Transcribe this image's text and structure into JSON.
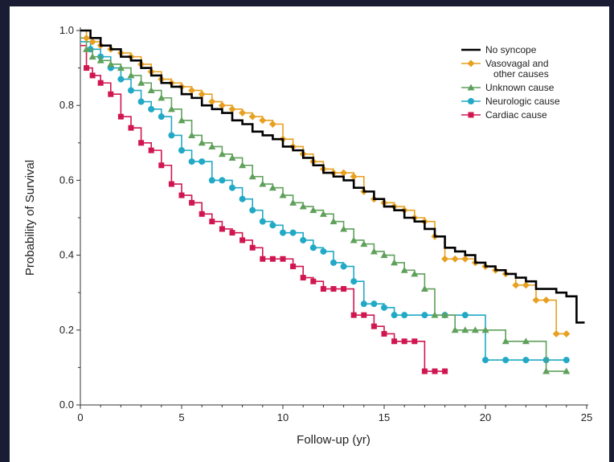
{
  "chart_data": {
    "type": "line",
    "step": true,
    "xlabel": "Follow-up (yr)",
    "ylabel": "Probability of Survival",
    "xlim": [
      0,
      25
    ],
    "ylim": [
      0,
      1.0
    ],
    "xticks": [
      0,
      5,
      10,
      15,
      20,
      25
    ],
    "yticks": [
      0.0,
      0.2,
      0.4,
      0.6,
      0.8,
      1.0
    ],
    "ytick_labels": [
      "0.0",
      "0.2",
      "0.4",
      "0.6",
      "0.8",
      "1.0"
    ],
    "legend_position": "top-right",
    "series": [
      {
        "name": "No syncope",
        "color": "#000000",
        "marker": "none",
        "x": [
          0,
          0.5,
          1,
          1.5,
          2,
          2.5,
          3,
          3.5,
          4,
          4.5,
          5,
          5.5,
          6,
          6.5,
          7,
          7.5,
          8,
          8.5,
          9,
          9.5,
          10,
          10.5,
          11,
          11.5,
          12,
          12.5,
          13,
          13.5,
          14,
          14.5,
          15,
          15.5,
          16,
          16.5,
          17,
          17.5,
          18,
          18.5,
          19,
          19.5,
          20,
          20.5,
          21,
          21.5,
          22,
          22.5,
          23,
          23.5,
          24,
          24.5,
          24.9
        ],
        "y": [
          1.0,
          0.98,
          0.96,
          0.95,
          0.93,
          0.92,
          0.9,
          0.88,
          0.86,
          0.85,
          0.83,
          0.82,
          0.8,
          0.79,
          0.78,
          0.76,
          0.75,
          0.73,
          0.72,
          0.71,
          0.69,
          0.68,
          0.66,
          0.64,
          0.62,
          0.61,
          0.6,
          0.58,
          0.57,
          0.55,
          0.53,
          0.52,
          0.5,
          0.49,
          0.47,
          0.45,
          0.42,
          0.41,
          0.4,
          0.38,
          0.37,
          0.36,
          0.35,
          0.34,
          0.33,
          0.31,
          0.31,
          0.3,
          0.29,
          0.22,
          0.22
        ]
      },
      {
        "name": "Vasovagal and other causes",
        "name_lines": [
          "Vasovagal and",
          "other causes"
        ],
        "color": "#e8a020",
        "marker": "diamond",
        "x": [
          0,
          0.3,
          0.6,
          1,
          1.5,
          2,
          2.5,
          3,
          3.5,
          4,
          4.5,
          5,
          5.5,
          6,
          6.5,
          7,
          7.5,
          8,
          8.5,
          9,
          9.5,
          10,
          10.5,
          11,
          11.5,
          12,
          12.5,
          13,
          13.5,
          14,
          14.5,
          15,
          15.5,
          16,
          16.5,
          17,
          17.5,
          18,
          18.5,
          19,
          19.5,
          20,
          20.5,
          21,
          21.5,
          22,
          22.5,
          23,
          23.5,
          24
        ],
        "y": [
          1.0,
          0.98,
          0.97,
          0.96,
          0.95,
          0.94,
          0.93,
          0.91,
          0.89,
          0.87,
          0.86,
          0.85,
          0.84,
          0.83,
          0.81,
          0.8,
          0.79,
          0.78,
          0.77,
          0.76,
          0.75,
          0.71,
          0.69,
          0.67,
          0.65,
          0.63,
          0.62,
          0.62,
          0.61,
          0.57,
          0.55,
          0.54,
          0.53,
          0.52,
          0.5,
          0.49,
          0.45,
          0.39,
          0.39,
          0.39,
          0.38,
          0.37,
          0.36,
          0.35,
          0.32,
          0.32,
          0.28,
          0.28,
          0.19,
          0.19
        ]
      },
      {
        "name": "Unknown cause",
        "color": "#5fa05a",
        "marker": "triangle",
        "x": [
          0,
          0.3,
          0.6,
          1,
          1.5,
          2,
          2.5,
          3,
          3.5,
          4,
          4.5,
          5,
          5.5,
          6,
          6.5,
          7,
          7.5,
          8,
          8.5,
          9,
          9.5,
          10,
          10.5,
          11,
          11.5,
          12,
          12.5,
          13,
          13.5,
          14,
          14.5,
          15,
          15.5,
          16,
          16.5,
          17,
          17.5,
          18,
          18.5,
          19,
          19.5,
          20,
          21,
          22,
          23,
          24
        ],
        "y": [
          0.98,
          0.95,
          0.93,
          0.92,
          0.91,
          0.9,
          0.88,
          0.86,
          0.84,
          0.82,
          0.79,
          0.76,
          0.72,
          0.7,
          0.69,
          0.67,
          0.66,
          0.64,
          0.61,
          0.59,
          0.58,
          0.56,
          0.54,
          0.53,
          0.52,
          0.51,
          0.49,
          0.47,
          0.44,
          0.43,
          0.41,
          0.4,
          0.38,
          0.36,
          0.35,
          0.31,
          0.24,
          0.24,
          0.2,
          0.2,
          0.2,
          0.2,
          0.17,
          0.17,
          0.09,
          0.09
        ]
      },
      {
        "name": "Neurologic cause",
        "color": "#21a9c6",
        "marker": "circle",
        "x": [
          0,
          0.5,
          1,
          1.5,
          2,
          2.5,
          3,
          3.5,
          4,
          4.5,
          5,
          5.5,
          6,
          6.5,
          7,
          7.5,
          8,
          8.5,
          9,
          9.5,
          10,
          10.5,
          11,
          11.5,
          12,
          12.5,
          13,
          13.5,
          14,
          14.5,
          15,
          15.5,
          16,
          17,
          18,
          19,
          20,
          21,
          22,
          23,
          24
        ],
        "y": [
          0.97,
          0.95,
          0.93,
          0.9,
          0.87,
          0.84,
          0.81,
          0.79,
          0.77,
          0.72,
          0.68,
          0.65,
          0.65,
          0.6,
          0.6,
          0.58,
          0.55,
          0.52,
          0.49,
          0.48,
          0.46,
          0.46,
          0.44,
          0.42,
          0.41,
          0.38,
          0.37,
          0.33,
          0.27,
          0.27,
          0.26,
          0.24,
          0.24,
          0.24,
          0.24,
          0.24,
          0.12,
          0.12,
          0.12,
          0.12,
          0.12
        ]
      },
      {
        "name": "Cardiac cause",
        "color": "#d01650",
        "marker": "square",
        "x": [
          0,
          0.3,
          0.6,
          1,
          1.5,
          2,
          2.5,
          3,
          3.5,
          4,
          4.5,
          5,
          5.5,
          6,
          6.5,
          7,
          7.5,
          8,
          8.5,
          9,
          9.5,
          10,
          10.5,
          11,
          11.5,
          12,
          12.5,
          13,
          13.5,
          14,
          14.5,
          15,
          15.5,
          16,
          16.5,
          17,
          17.5,
          18
        ],
        "y": [
          0.96,
          0.9,
          0.88,
          0.86,
          0.83,
          0.77,
          0.74,
          0.7,
          0.68,
          0.64,
          0.59,
          0.56,
          0.54,
          0.51,
          0.49,
          0.47,
          0.46,
          0.44,
          0.42,
          0.39,
          0.39,
          0.39,
          0.37,
          0.34,
          0.33,
          0.31,
          0.31,
          0.31,
          0.24,
          0.24,
          0.21,
          0.19,
          0.17,
          0.17,
          0.17,
          0.09,
          0.09,
          0.09
        ]
      }
    ]
  }
}
